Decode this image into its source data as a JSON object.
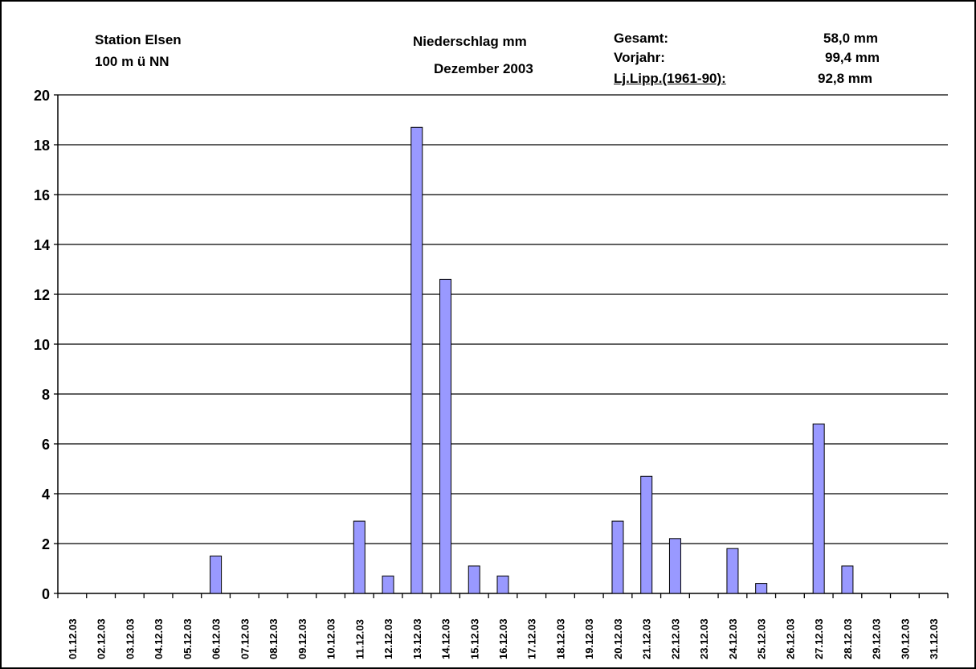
{
  "header": {
    "station_name": "Station Elsen",
    "station_altitude": "100 m ü NN",
    "chart_title": "Niederschlag mm",
    "chart_subtitle": "Dezember 2003",
    "stats": [
      {
        "label": "Gesamt:",
        "value": "58,0 mm"
      },
      {
        "label": "Vorjahr:",
        "value": "99,4 mm"
      },
      {
        "label": "Lj.Lipp.(1961-90):",
        "value": "92,8 mm"
      }
    ]
  },
  "colors": {
    "bar_fill": "#9999ff",
    "bar_stroke": "#000000",
    "grid": "#000000"
  },
  "chart_data": {
    "type": "bar",
    "title": "Niederschlag mm",
    "subtitle": "Dezember 2003",
    "xlabel": "",
    "ylabel": "",
    "ylim": [
      0,
      20
    ],
    "yticks": [
      0,
      2,
      4,
      6,
      8,
      10,
      12,
      14,
      16,
      18,
      20
    ],
    "grid": true,
    "legend": "none",
    "categories": [
      "01.12.03",
      "02.12.03",
      "03.12.03",
      "04.12.03",
      "05.12.03",
      "06.12.03",
      "07.12.03",
      "08.12.03",
      "09.12.03",
      "10.12.03",
      "11.12.03",
      "12.12.03",
      "13.12.03",
      "14.12.03",
      "15.12.03",
      "16.12.03",
      "17.12.03",
      "18.12.03",
      "19.12.03",
      "20.12.03",
      "21.12.03",
      "22.12.03",
      "23.12.03",
      "24.12.03",
      "25.12.03",
      "26.12.03",
      "27.12.03",
      "28.12.03",
      "29.12.03",
      "30.12.03",
      "31.12.03"
    ],
    "values": [
      0,
      0,
      0,
      0,
      0,
      1.5,
      0,
      0,
      0,
      0,
      2.9,
      0.7,
      18.7,
      12.6,
      1.1,
      0.7,
      0,
      0,
      0,
      2.9,
      4.7,
      2.2,
      0,
      1.8,
      0.4,
      0,
      6.8,
      1.1,
      0,
      0,
      0
    ]
  }
}
